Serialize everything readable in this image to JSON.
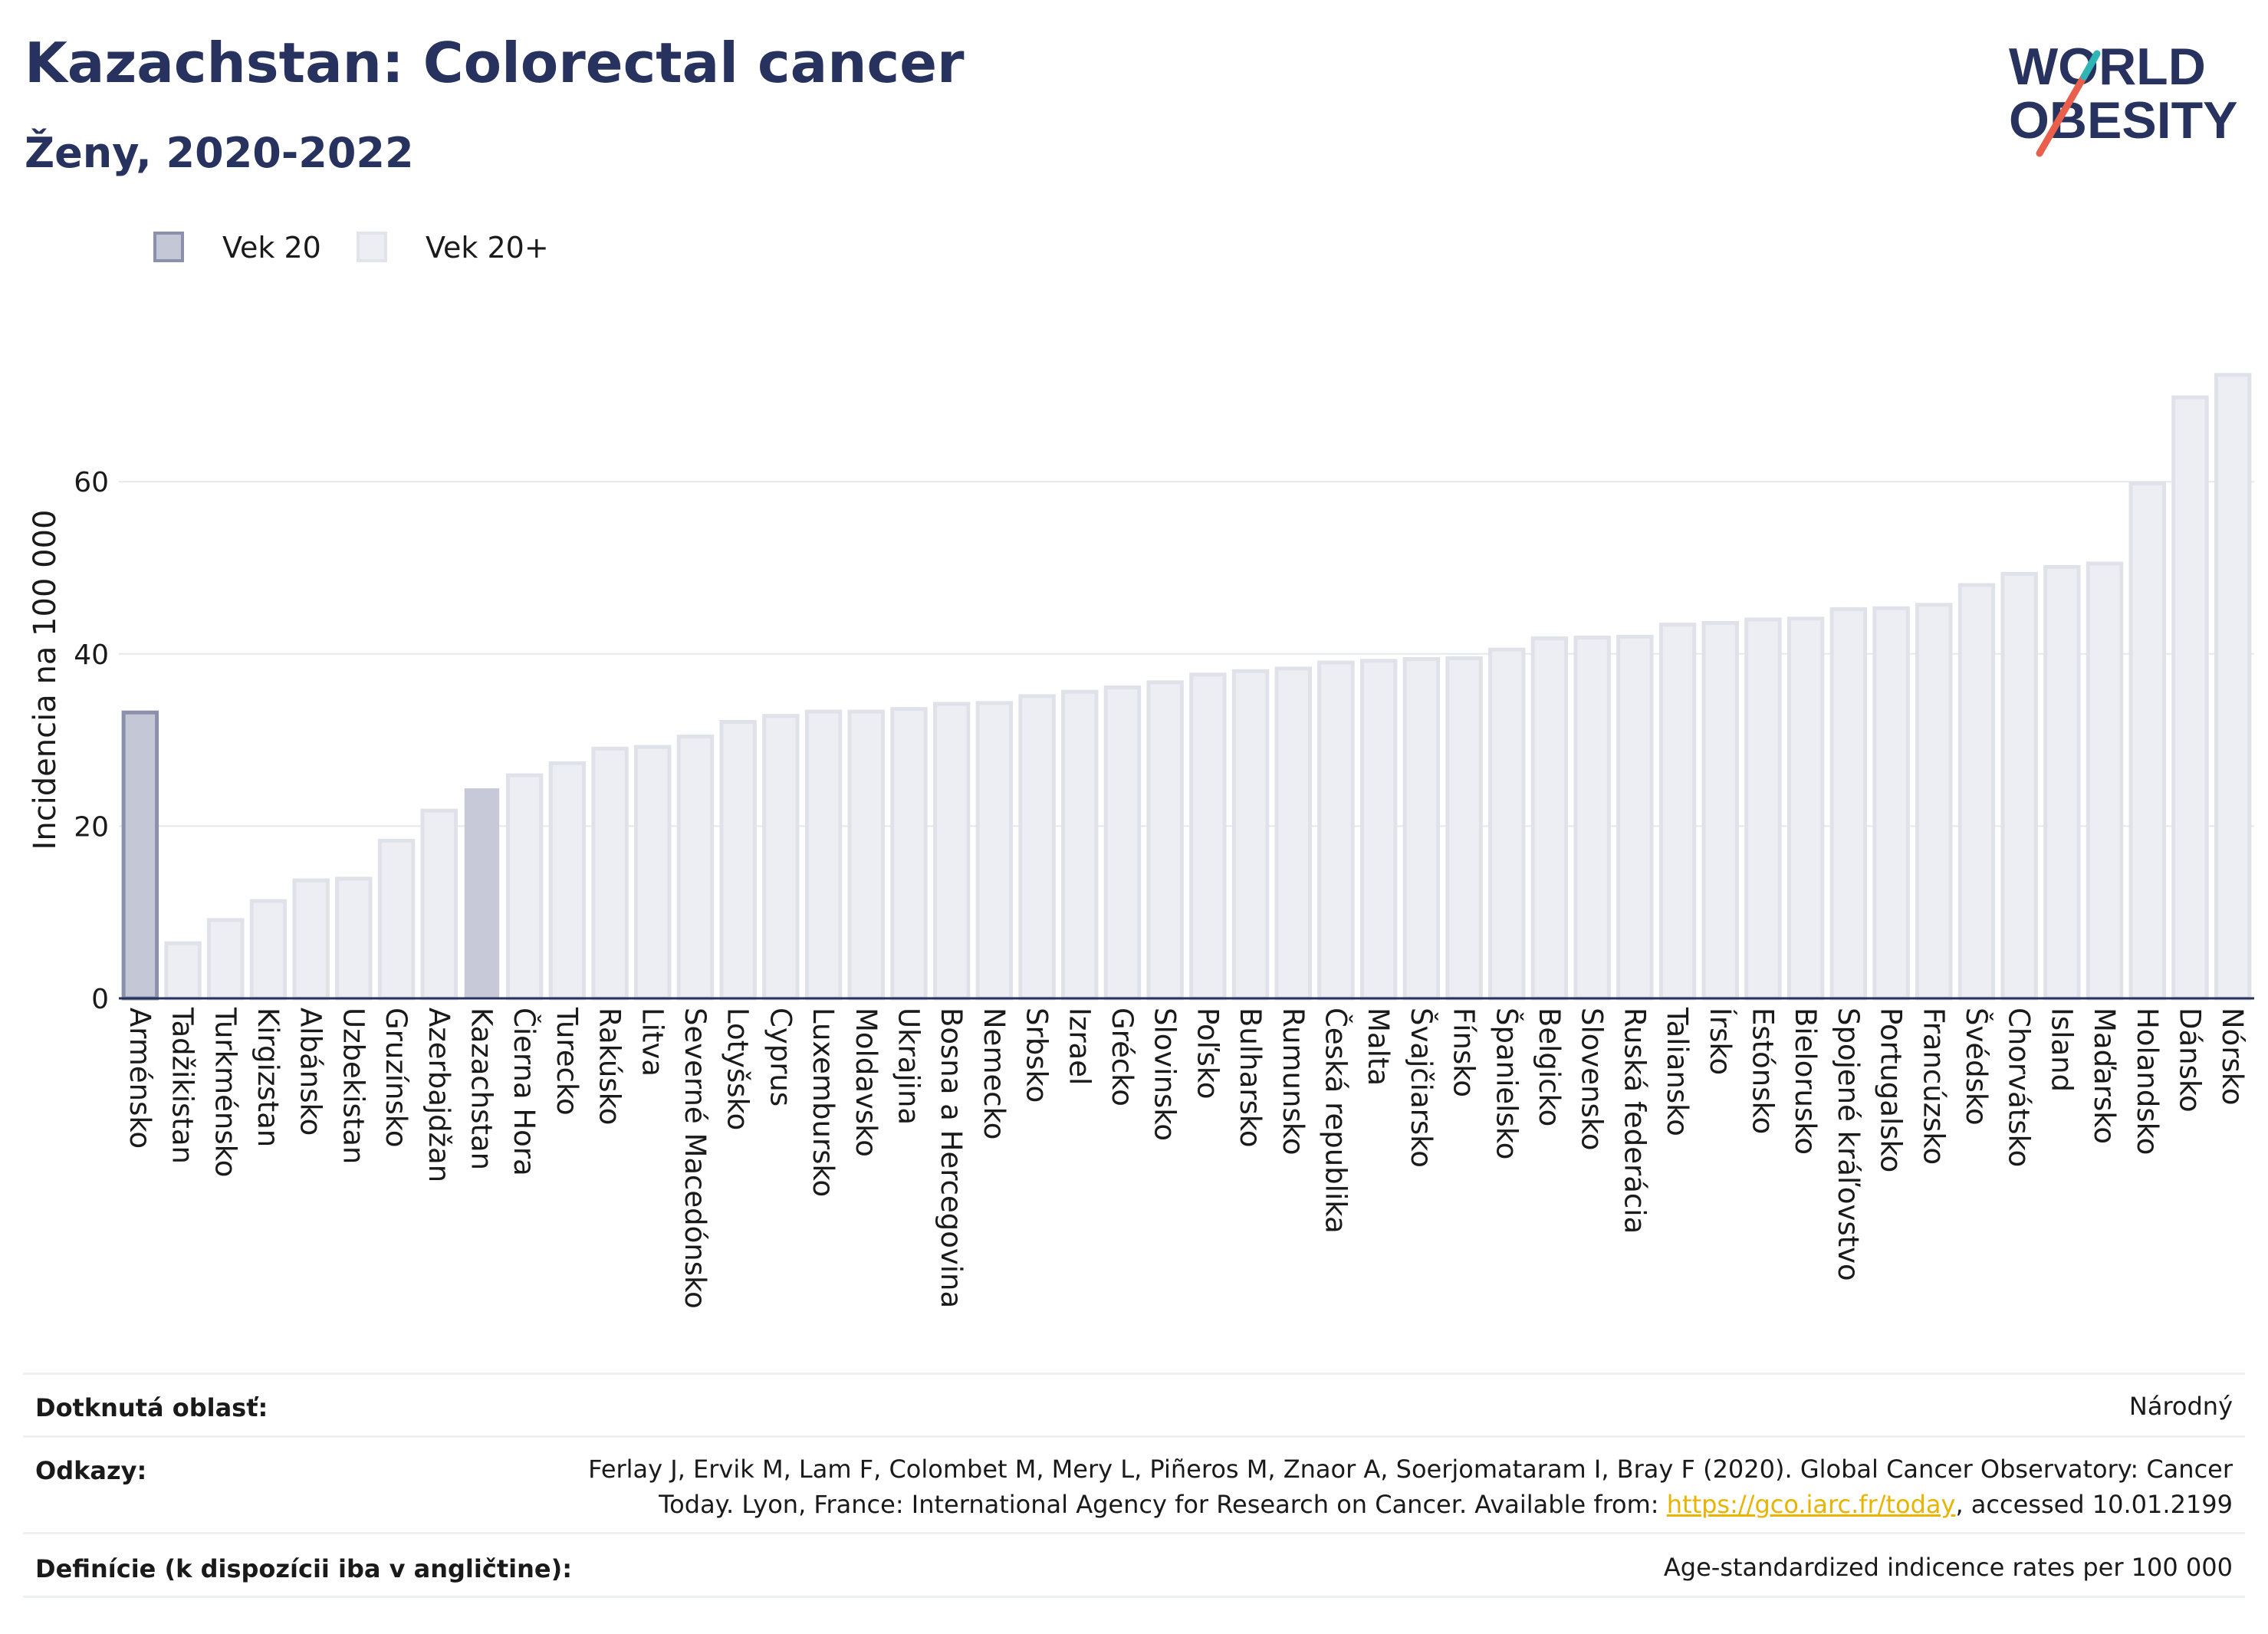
{
  "header": {
    "title": "Kazachstan: Colorectal cancer",
    "subtitle": "Ženy, 2020-2022"
  },
  "logo": {
    "line1": "WORLD",
    "line2": "OBESITY",
    "name": "world-obesity-logo"
  },
  "legend": [
    {
      "label": "Vek 20",
      "color": "#c4c7d6",
      "border": "#8b91ab"
    },
    {
      "label": "Vek 20+",
      "color": "#eceef3",
      "border": "#e2e4ec"
    }
  ],
  "colors": {
    "highlight": "#c7c9d8",
    "highlight_border": "#8b91ab",
    "bar": "#eceef3",
    "bar_border": "#e0e2ea",
    "axis": "#27325e",
    "grid": "#e6e8ee",
    "link": "#e9b400"
  },
  "chart_data": {
    "type": "bar",
    "ylabel": "Incidencia na 100 000",
    "xlabel": "",
    "ylim": [
      0,
      75
    ],
    "yticks": [
      0,
      20,
      40,
      60
    ],
    "grid": true,
    "legend_position": "top-left",
    "categories": [
      "Arménsko",
      "Tadžikistan",
      "Turkménsko",
      "Kirgizstan",
      "Albánsko",
      "Uzbekistan",
      "Gruzínsko",
      "Azerbajdžan",
      "Kazachstan",
      "Čierna Hora",
      "Turecko",
      "Rakúsko",
      "Litva",
      "Severné Macedónsko",
      "Lotyšsko",
      "Cyprus",
      "Luxembursko",
      "Moldavsko",
      "Ukrajina",
      "Bosna a Hercegovina",
      "Nemecko",
      "Srbsko",
      "Izrael",
      "Grécko",
      "Slovinsko",
      "Poľsko",
      "Bulharsko",
      "Rumunsko",
      "Česká republika",
      "Malta",
      "Švajčiarsko",
      "Fínsko",
      "Španielsko",
      "Belgicko",
      "Slovensko",
      "Ruská federácia",
      "Taliansko",
      "Írsko",
      "Estónsko",
      "Bielorusko",
      "Spojené kráľovstvo",
      "Portugalsko",
      "Francúzsko",
      "Švédsko",
      "Chorvátsko",
      "Island",
      "Maďarsko",
      "Holandsko",
      "Dánsko",
      "Nórsko"
    ],
    "values": [
      33.2,
      6.4,
      9.1,
      11.3,
      13.7,
      13.9,
      18.3,
      21.8,
      24.3,
      25.9,
      27.3,
      29.0,
      29.2,
      30.4,
      32.1,
      32.8,
      33.3,
      33.3,
      33.6,
      34.2,
      34.3,
      35.1,
      35.6,
      36.1,
      36.7,
      37.6,
      38.0,
      38.3,
      39.0,
      39.2,
      39.4,
      39.5,
      40.5,
      41.8,
      41.9,
      42.0,
      43.4,
      43.6,
      44.0,
      44.1,
      45.2,
      45.3,
      45.7,
      48.0,
      49.3,
      50.1,
      50.5,
      59.8,
      69.8,
      72.4
    ],
    "series_group": [
      "Vek 20",
      "Vek 20+",
      "Vek 20+",
      "Vek 20+",
      "Vek 20+",
      "Vek 20+",
      "Vek 20+",
      "Vek 20+",
      "Vek 20+",
      "Vek 20+",
      "Vek 20+",
      "Vek 20+",
      "Vek 20+",
      "Vek 20+",
      "Vek 20+",
      "Vek 20+",
      "Vek 20+",
      "Vek 20+",
      "Vek 20+",
      "Vek 20+",
      "Vek 20+",
      "Vek 20+",
      "Vek 20+",
      "Vek 20+",
      "Vek 20+",
      "Vek 20+",
      "Vek 20+",
      "Vek 20+",
      "Vek 20+",
      "Vek 20+",
      "Vek 20+",
      "Vek 20+",
      "Vek 20+",
      "Vek 20+",
      "Vek 20+",
      "Vek 20+",
      "Vek 20+",
      "Vek 20+",
      "Vek 20+",
      "Vek 20+",
      "Vek 20+",
      "Vek 20+",
      "Vek 20+",
      "Vek 20+",
      "Vek 20+",
      "Vek 20+",
      "Vek 20+",
      "Vek 20+",
      "Vek 20+",
      "Vek 20+"
    ],
    "highlight_category": "Kazachstan"
  },
  "info": {
    "area_label": "Dotknutá oblasť:",
    "area_value": "Národný",
    "refs_label": "Odkazy:",
    "refs_line1": "Ferlay J, Ervik M, Lam F, Colombet M, Mery L, Piñeros M, Znaor A, Soerjomataram I, Bray F (2020). Global Cancer Observatory: Cancer",
    "refs_line2_pre": "Today. Lyon, France: International Agency for Research on Cancer. Available from: ",
    "refs_link": "https://gco.iarc.fr/today",
    "refs_line2_post": ", accessed 10.01.2199",
    "def_label": "Definície (k dispozícii iba v angličtine):",
    "def_value": "Age-standardized indicence rates per 100 000"
  }
}
